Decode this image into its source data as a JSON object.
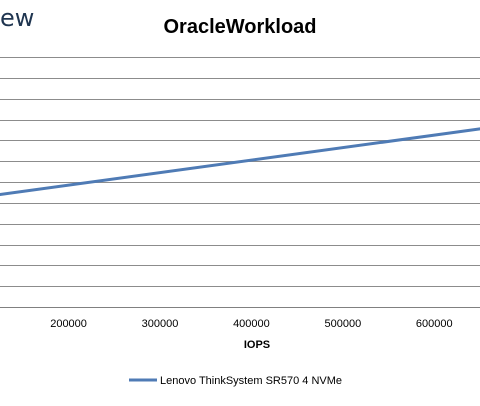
{
  "header": {
    "partial_logo_text": "ew"
  },
  "chart_data": {
    "type": "line",
    "title": "OracleWorkload",
    "xlabel": "IOPS",
    "ylabel": "",
    "x_ticks": [
      200000,
      300000,
      400000,
      500000,
      600000
    ],
    "x_tick_labels": [
      "200000",
      "300000",
      "400000",
      "500000",
      "600000"
    ],
    "xlim": [
      125000,
      650000
    ],
    "ylim": [
      0,
      12
    ],
    "grid": true,
    "legend_position": "bottom",
    "series": [
      {
        "name": "Lenovo ThinkSystem SR570 4 NVMe",
        "color": "#4f7bb5",
        "x": [
          125000,
          650000
        ],
        "y": [
          5.4,
          8.55
        ]
      }
    ]
  }
}
